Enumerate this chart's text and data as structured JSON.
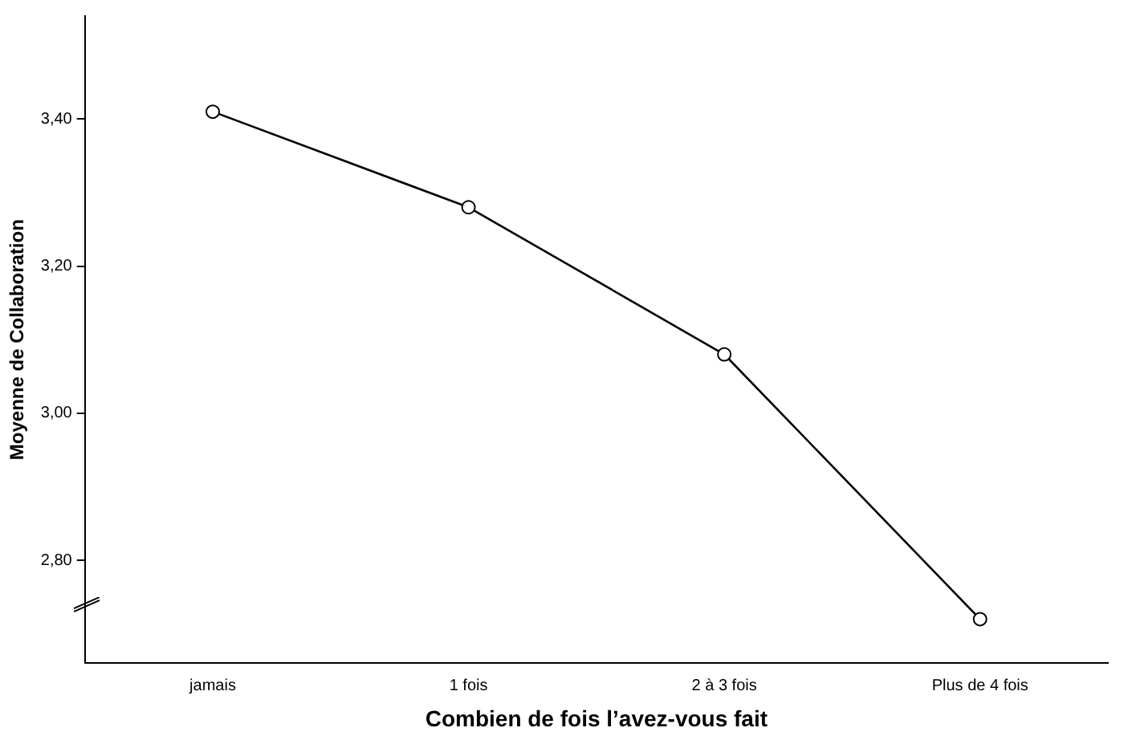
{
  "chart_data": {
    "type": "line",
    "xlabel": "Combien de fois l’avez-vous fait",
    "ylabel": "Moyenne de Collaboration",
    "categories": [
      "jamais",
      "1 fois",
      "2 à 3 fois",
      "Plus de 4 fois"
    ],
    "series": [
      {
        "color": "#000000",
        "values": [
          3.41,
          3.28,
          3.08,
          2.72
        ]
      }
    ],
    "ylim": [
      2.66,
      3.54
    ],
    "yticks": [
      {
        "value": 2.8,
        "label": "2,80"
      },
      {
        "value": 3.0,
        "label": "3,00"
      },
      {
        "value": 3.2,
        "label": "3,20"
      },
      {
        "value": 3.4,
        "label": "3,40"
      }
    ],
    "grid": false,
    "legend": false,
    "marker": "circle",
    "line_style": "solid"
  }
}
